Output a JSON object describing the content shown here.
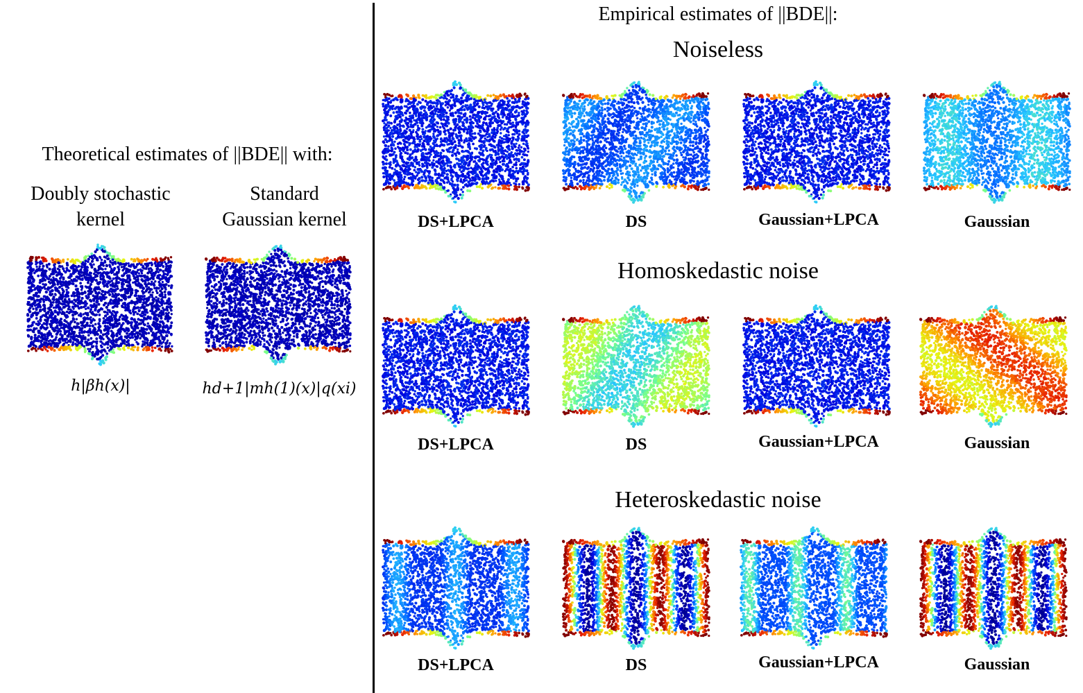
{
  "left": {
    "heading": "Theoretical estimates of ||BDE|| with:",
    "col1_title_line1": "Doubly stochastic",
    "col1_title_line2": "kernel",
    "col2_title_line1": "Standard",
    "col2_title_line2": "Gaussian kernel",
    "col1_formula": "h|βh(x)|",
    "col2_formula": "hd+1|mh(1)(x)|q(xi)"
  },
  "right": {
    "heading": "Empirical estimates of ||BDE||:",
    "rows": [
      {
        "title": "Noiseless",
        "labels": [
          "DS+LPCA",
          "DS",
          "Gaussian+LPCA",
          "Gaussian"
        ]
      },
      {
        "title": "Homoskedastic noise",
        "labels": [
          "DS+LPCA",
          "DS",
          "Gaussian+LPCA",
          "Gaussian"
        ]
      },
      {
        "title": "Heteroskedastic noise",
        "labels": [
          "DS+LPCA",
          "DS",
          "Gaussian+LPCA",
          "Gaussian"
        ]
      }
    ]
  },
  "colors": {
    "dark_blue": "#00007f",
    "blue": "#0033cc",
    "cyan": "#33ccff",
    "yellow": "#ffee00",
    "red": "#dd1100",
    "dark_red": "#800000"
  },
  "panels": [
    {
      "id": "theory-ds",
      "interior": "dark-blue"
    },
    {
      "id": "theory-gauss",
      "interior": "dark-blue"
    },
    {
      "id": "noiseless-ds-lpca",
      "interior": "blue"
    },
    {
      "id": "noiseless-ds",
      "interior": "light-blue"
    },
    {
      "id": "noiseless-gauss-lpca",
      "interior": "blue"
    },
    {
      "id": "noiseless-gauss",
      "interior": "cyan"
    },
    {
      "id": "homo-ds-lpca",
      "interior": "blue"
    },
    {
      "id": "homo-ds",
      "interior": "green-yellow"
    },
    {
      "id": "homo-gauss-lpca",
      "interior": "blue"
    },
    {
      "id": "homo-gauss",
      "interior": "orange-red"
    },
    {
      "id": "hetero-ds-lpca",
      "interior": "blue-cyan-stripes"
    },
    {
      "id": "hetero-ds",
      "interior": "red-blue-stripes"
    },
    {
      "id": "hetero-gauss-lpca",
      "interior": "blue-green-stripes"
    },
    {
      "id": "hetero-gauss",
      "interior": "red-blue-stripes"
    }
  ]
}
